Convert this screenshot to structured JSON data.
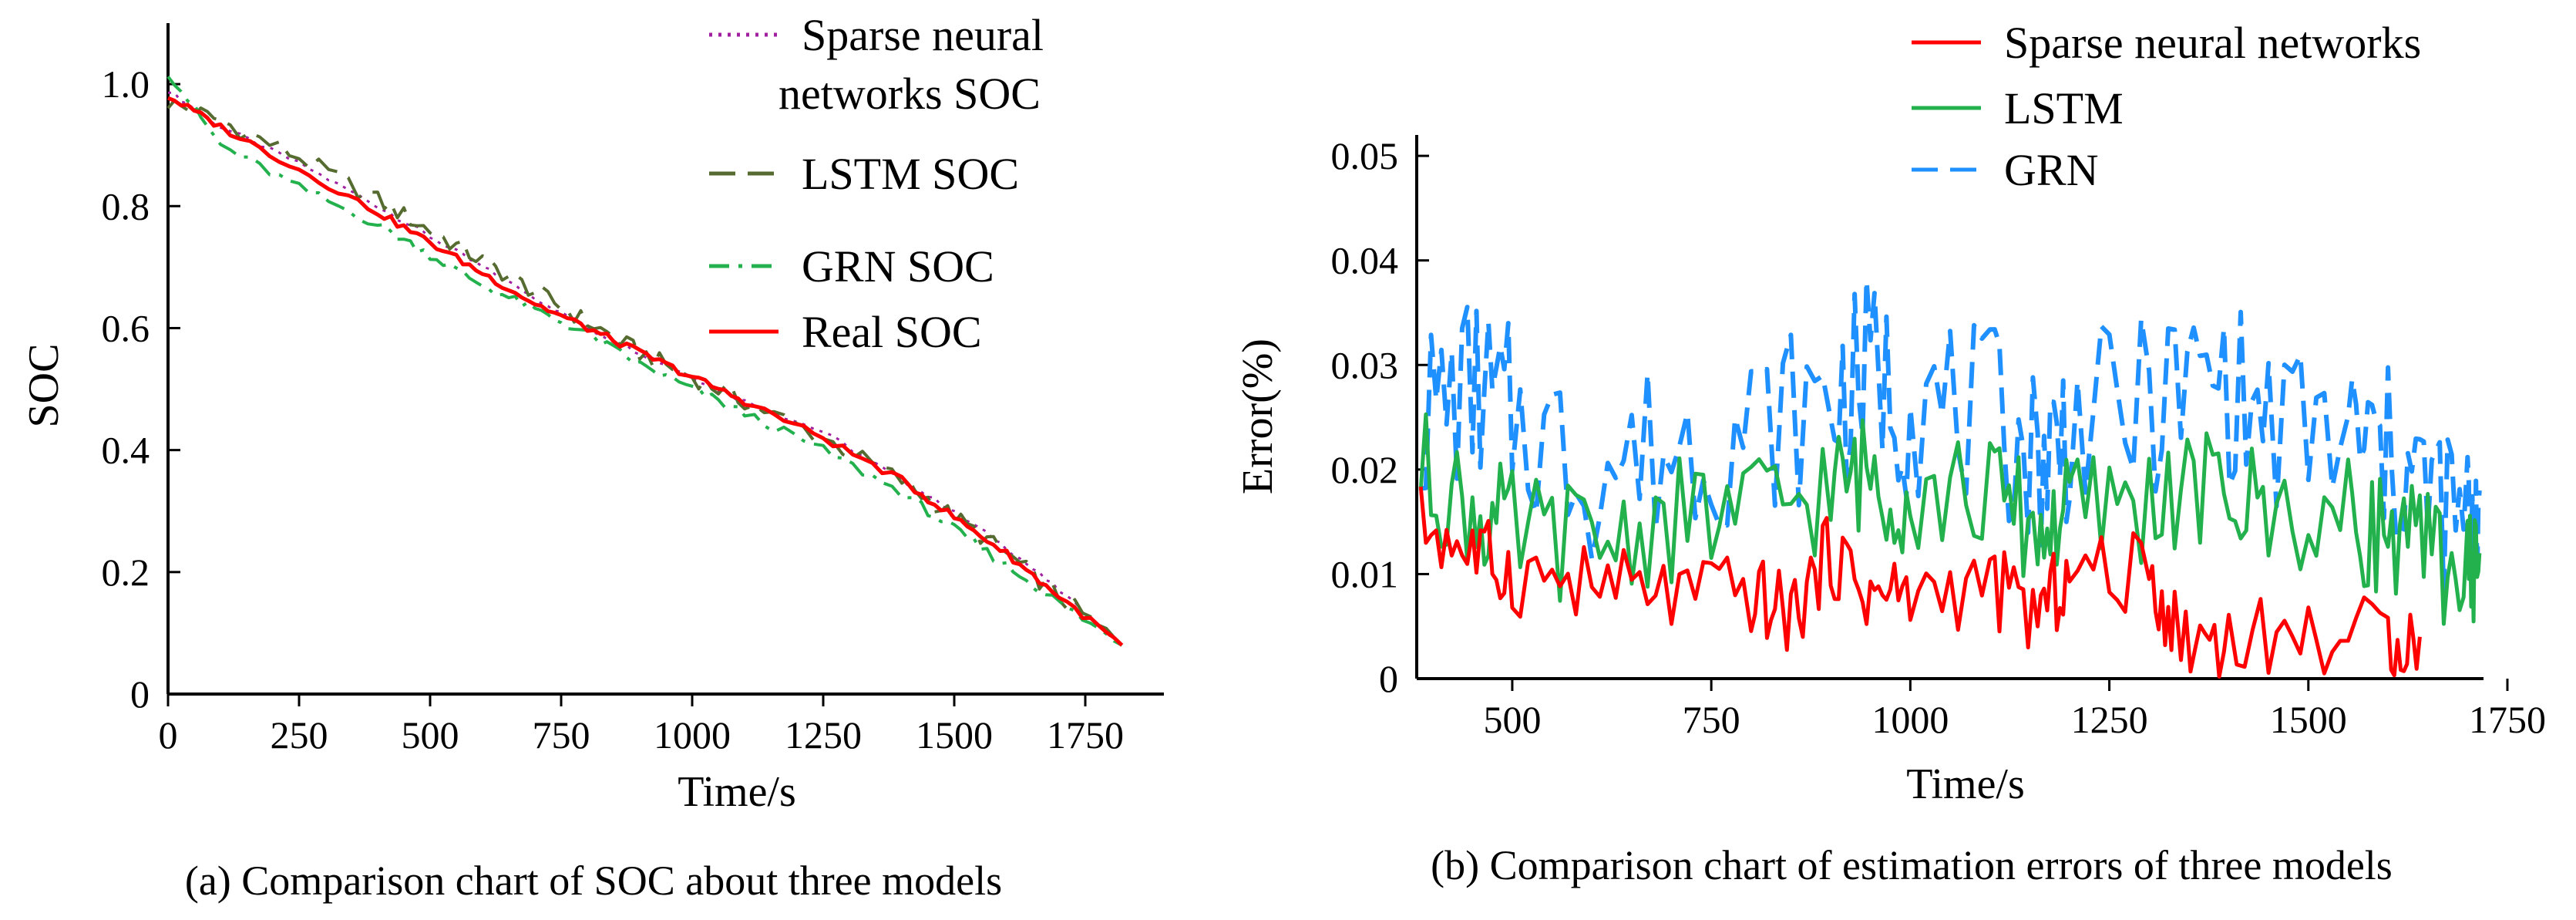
{
  "chart_data": [
    {
      "type": "line",
      "panel": "a",
      "caption": "(a) Comparison chart of  SOC about three models",
      "xlabel": "Time/s",
      "ylabel": "SOC",
      "xlim": [
        0,
        1900
      ],
      "ylim": [
        0,
        1.1
      ],
      "xticks": [
        0,
        250,
        500,
        750,
        1000,
        1250,
        1500,
        1750
      ],
      "xtick_labels": [
        "0",
        "250",
        "500",
        "750",
        "1000",
        "1250",
        "1500",
        "1750"
      ],
      "yticks": [
        0,
        0.2,
        0.4,
        0.6,
        0.8,
        1.0
      ],
      "ytick_labels": [
        "0",
        "0.2",
        "0.4",
        "0.6",
        "0.8",
        "1.0"
      ],
      "legend_position": "top-right",
      "legend_lines": [
        [
          "Sparse neural",
          "networks SOC"
        ],
        [
          "LSTM SOC"
        ],
        [
          "GRN SOC"
        ],
        [
          "Real SOC"
        ]
      ],
      "series": [
        {
          "name": "Sparse neural networks SOC",
          "color": "#a020a0",
          "style": "dotted",
          "x": [
            0,
            100,
            250,
            400,
            500,
            600,
            700,
            800,
            900,
            1000,
            1100,
            1250,
            1400,
            1500,
            1600,
            1700,
            1820
          ],
          "y": [
            0.99,
            0.93,
            0.87,
            0.8,
            0.75,
            0.7,
            0.65,
            0.6,
            0.56,
            0.52,
            0.48,
            0.43,
            0.35,
            0.3,
            0.24,
            0.17,
            0.08
          ]
        },
        {
          "name": "LSTM SOC",
          "color": "#556b2f",
          "style": "dashed",
          "x": [
            0,
            100,
            250,
            400,
            500,
            600,
            700,
            800,
            900,
            1000,
            1100,
            1250,
            1400,
            1500,
            1600,
            1700,
            1820
          ],
          "y": [
            0.97,
            0.94,
            0.88,
            0.81,
            0.76,
            0.71,
            0.66,
            0.61,
            0.56,
            0.52,
            0.48,
            0.42,
            0.35,
            0.29,
            0.23,
            0.16,
            0.08
          ]
        },
        {
          "name": "GRN SOC",
          "color": "#22b14c",
          "style": "dashdot",
          "x": [
            0,
            100,
            250,
            400,
            500,
            600,
            700,
            800,
            900,
            1000,
            1100,
            1250,
            1400,
            1500,
            1600,
            1700,
            1820
          ],
          "y": [
            1.02,
            0.9,
            0.83,
            0.77,
            0.72,
            0.67,
            0.63,
            0.59,
            0.54,
            0.5,
            0.46,
            0.4,
            0.33,
            0.27,
            0.21,
            0.15,
            0.08
          ]
        },
        {
          "name": "Real SOC",
          "color": "#ff0000",
          "style": "solid",
          "x": [
            0,
            100,
            250,
            400,
            500,
            600,
            700,
            800,
            900,
            1000,
            1100,
            1250,
            1400,
            1500,
            1600,
            1700,
            1820
          ],
          "y": [
            0.98,
            0.93,
            0.86,
            0.79,
            0.74,
            0.69,
            0.64,
            0.6,
            0.56,
            0.52,
            0.48,
            0.42,
            0.35,
            0.29,
            0.23,
            0.16,
            0.08
          ]
        }
      ]
    },
    {
      "type": "line",
      "panel": "b",
      "caption": "(b) Comparison chart of estimation errors of three models",
      "xlabel": "Time/s",
      "ylabel": "Error(%)",
      "xlim": [
        380,
        1720
      ],
      "ylim": [
        0,
        0.052
      ],
      "xticks": [
        500,
        750,
        1000,
        1250,
        1500,
        1750
      ],
      "xtick_labels": [
        "500",
        "750",
        "1000",
        "1250",
        "1500",
        "1750"
      ],
      "yticks": [
        0,
        0.01,
        0.02,
        0.03,
        0.04,
        0.05
      ],
      "ytick_labels": [
        "0",
        "0.01",
        "0.02",
        "0.03",
        "0.04",
        "0.05"
      ],
      "legend_position": "top-right",
      "legend_lines": [
        [
          "Sparse neural networks"
        ],
        [
          "LSTM"
        ],
        [
          "GRN"
        ]
      ],
      "series": [
        {
          "name": "GRN",
          "color": "#1e90ff",
          "style": "dashed",
          "x": [
            385,
            450,
            500,
            600,
            700,
            800,
            900,
            950,
            1000,
            1100,
            1160,
            1200,
            1300,
            1380,
            1450,
            1550,
            1600,
            1650,
            1700,
            1715
          ],
          "y": [
            0.025,
            0.028,
            0.025,
            0.02,
            0.022,
            0.024,
            0.026,
            0.03,
            0.026,
            0.025,
            0.021,
            0.024,
            0.026,
            0.029,
            0.024,
            0.023,
            0.021,
            0.018,
            0.014,
            0.018
          ]
        },
        {
          "name": "LSTM",
          "color": "#22b14c",
          "style": "solid",
          "x": [
            385,
            450,
            500,
            600,
            700,
            800,
            900,
            950,
            1000,
            1100,
            1160,
            1200,
            1300,
            1380,
            1450,
            1550,
            1600,
            1650,
            1700,
            1715
          ],
          "y": [
            0.02,
            0.016,
            0.014,
            0.013,
            0.015,
            0.016,
            0.018,
            0.02,
            0.017,
            0.018,
            0.014,
            0.016,
            0.017,
            0.018,
            0.016,
            0.015,
            0.014,
            0.012,
            0.01,
            0.012
          ]
        },
        {
          "name": "Sparse neural networks",
          "color": "#ff0000",
          "style": "solid",
          "x": [
            385,
            450,
            500,
            600,
            700,
            800,
            850,
            900,
            950,
            1000,
            1100,
            1160,
            1200,
            1300,
            1340,
            1400,
            1500,
            1600,
            1640
          ],
          "y": [
            0.015,
            0.012,
            0.01,
            0.009,
            0.008,
            0.008,
            0.006,
            0.012,
            0.008,
            0.008,
            0.009,
            0.006,
            0.01,
            0.01,
            0.004,
            0.004,
            0.004,
            0.004,
            0.004
          ]
        }
      ]
    }
  ]
}
